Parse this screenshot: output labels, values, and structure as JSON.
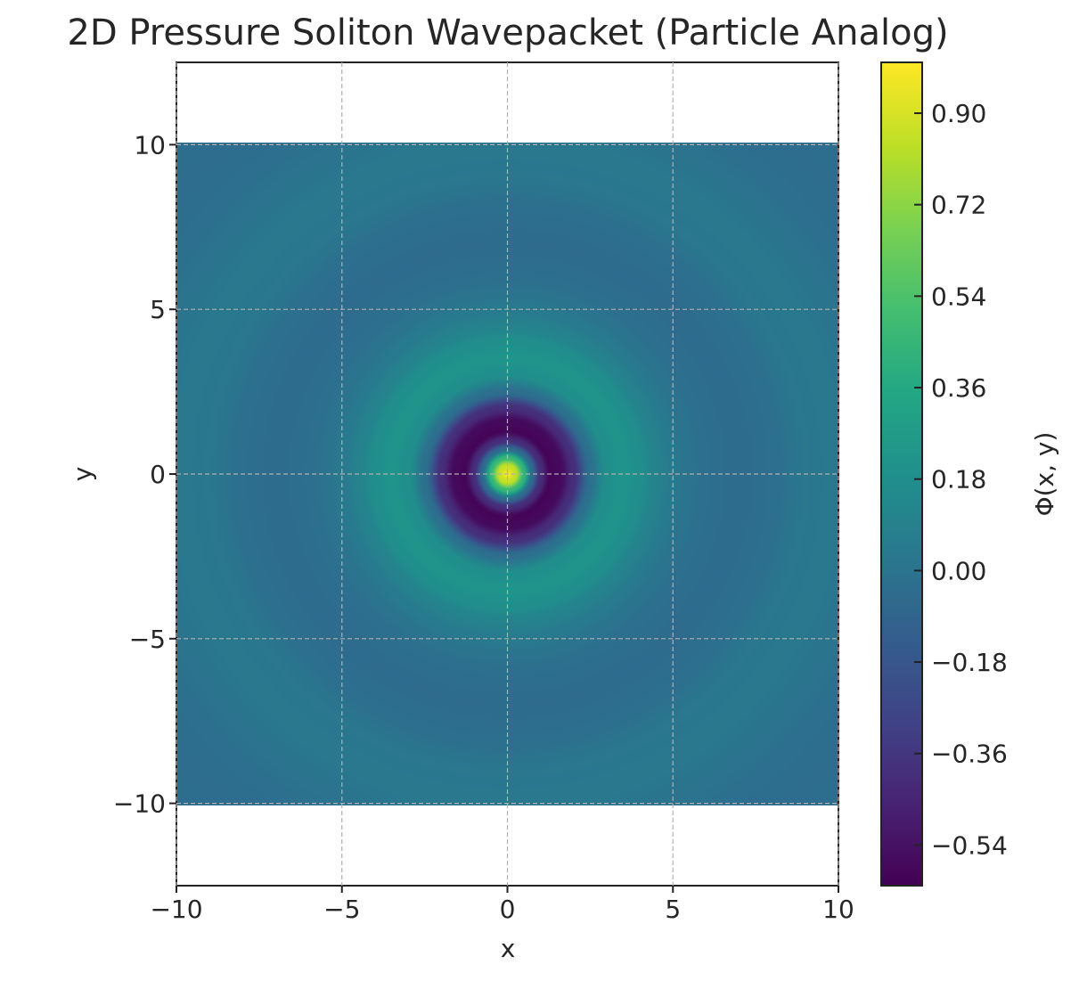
{
  "chart_data": {
    "type": "heatmap",
    "title": "2D Pressure Soliton Wavepacket (Particle Analog)",
    "xlabel": "x",
    "ylabel": "y",
    "xlim": [
      -10,
      10
    ],
    "ylim": [
      -12.5,
      12.5
    ],
    "data_extent": {
      "x": [
        -10,
        10
      ],
      "y": [
        -10,
        10
      ]
    },
    "xticks": [
      "−10",
      "−5",
      "0",
      "5",
      "10"
    ],
    "xtick_values": [
      -10,
      -5,
      0,
      5,
      10
    ],
    "yticks": [
      "−10",
      "−5",
      "0",
      "5",
      "10"
    ],
    "ytick_values": [
      -10,
      -5,
      0,
      5,
      10
    ],
    "grid": true,
    "colormap": "viridis",
    "colorbar": {
      "label": "Φ(x, y)",
      "range": [
        -0.62,
        1.0
      ],
      "ticks": [
        "0.90",
        "0.72",
        "0.54",
        "0.36",
        "0.18",
        "0.00",
        "−0.18",
        "−0.36",
        "−0.54"
      ],
      "tick_values": [
        0.9,
        0.72,
        0.54,
        0.36,
        0.18,
        0,
        -0.18,
        -0.36,
        -0.54
      ]
    },
    "radial_profile": {
      "r": [
        0,
        0.25,
        0.5,
        0.75,
        1.0,
        1.3,
        1.6,
        2.0,
        2.5,
        3.0,
        3.5,
        4.0,
        4.5,
        5.0,
        5.5,
        6.0,
        7.0,
        8.0,
        9.0,
        10.0,
        11.0,
        12.0,
        13.0,
        14.5
      ],
      "phi": [
        1.0,
        0.85,
        0.45,
        -0.05,
        -0.4,
        -0.6,
        -0.58,
        -0.4,
        -0.02,
        0.18,
        0.22,
        0.18,
        0.1,
        0.04,
        0.0,
        -0.03,
        -0.05,
        -0.03,
        0.02,
        0.03,
        0.0,
        -0.03,
        -0.04,
        -0.03
      ]
    }
  }
}
